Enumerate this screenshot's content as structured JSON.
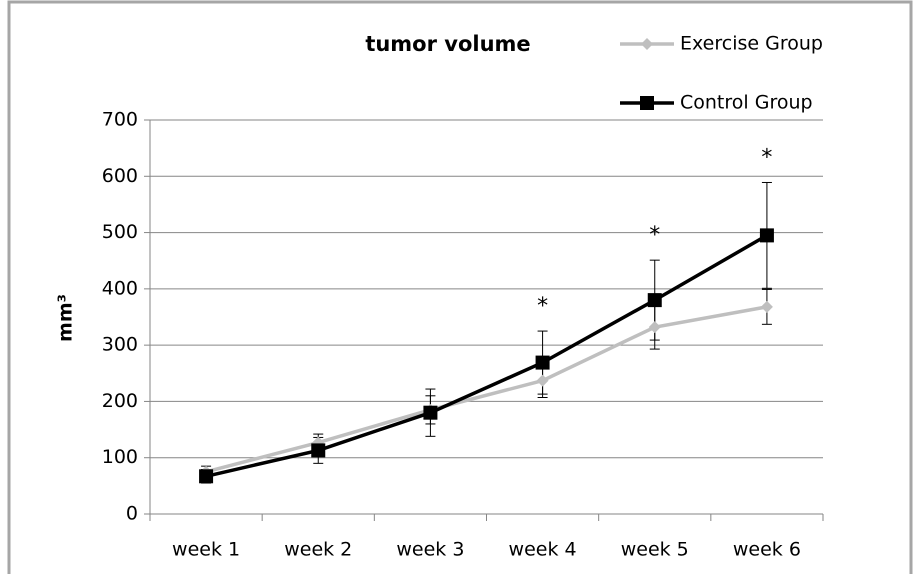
{
  "chart_data": {
    "type": "line",
    "title": "tumor volume",
    "y_label": "mm³",
    "categories": [
      "week 1",
      "week 2",
      "week 3",
      "week 4",
      "week 5",
      "week 6"
    ],
    "series": [
      {
        "name": "Exercise Group",
        "color": "#bfbfbf",
        "marker": "diamond",
        "values": [
          75,
          127,
          185,
          237,
          332,
          368
        ],
        "errors": [
          10,
          15,
          25,
          30,
          39,
          31
        ]
      },
      {
        "name": "Control Group",
        "color": "#000000",
        "marker": "square",
        "values": [
          67,
          113,
          180,
          269,
          380,
          495
        ],
        "errors": [
          12,
          23,
          42,
          56,
          71,
          94
        ]
      }
    ],
    "annotations": [
      {
        "x": "week 4",
        "text": "*"
      },
      {
        "x": "week 5",
        "text": "*"
      },
      {
        "x": "week 6",
        "text": "*"
      }
    ],
    "ylim": [
      0,
      700
    ],
    "yticks": [
      0,
      100,
      200,
      300,
      400,
      500,
      600,
      700
    ],
    "grid": true,
    "legend": "top-right"
  }
}
